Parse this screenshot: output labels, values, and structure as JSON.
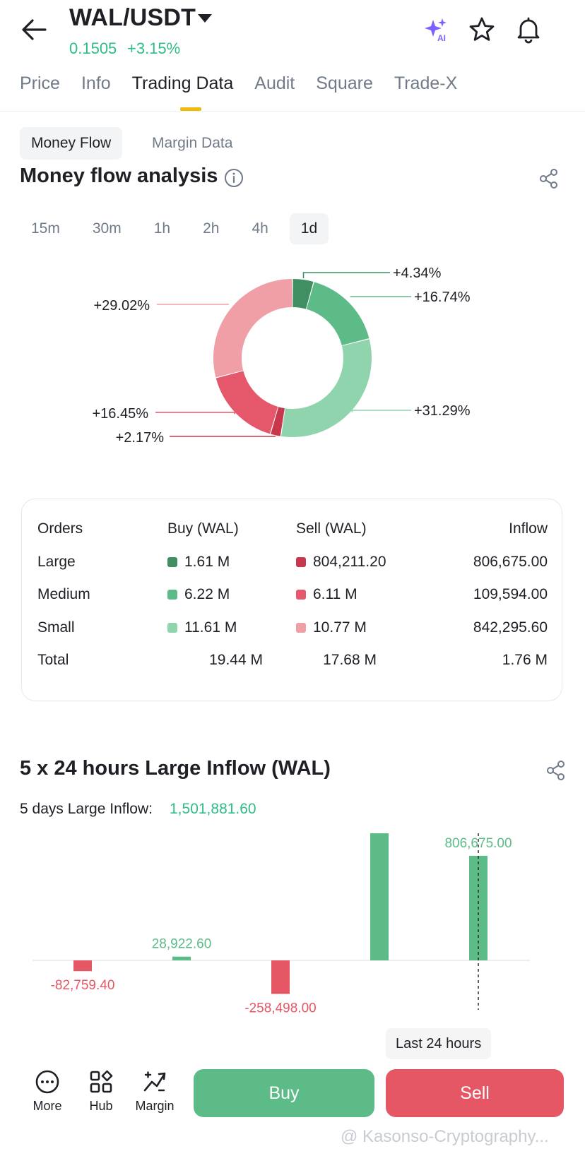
{
  "header": {
    "pair": "WAL/USDT",
    "price": "0.1505",
    "change": "+3.15%",
    "icons": [
      "back-arrow-icon",
      "ai-sparkle-icon",
      "star-icon",
      "bell-icon"
    ]
  },
  "tabs": [
    {
      "label": "Price"
    },
    {
      "label": "Info"
    },
    {
      "label": "Trading Data",
      "active": true
    },
    {
      "label": "Audit"
    },
    {
      "label": "Square"
    },
    {
      "label": "Trade-X"
    }
  ],
  "subtabs": {
    "money_flow": "Money Flow",
    "margin_data": "Margin Data"
  },
  "money_flow": {
    "title": "Money flow analysis",
    "intervals": [
      "15m",
      "30m",
      "1h",
      "2h",
      "4h",
      "1d"
    ],
    "active_interval": "1d"
  },
  "chart_data": [
    {
      "type": "pie",
      "variant": "donut",
      "slices": [
        {
          "label": "+4.34%",
          "value": 4.34,
          "color": "#3f8f63"
        },
        {
          "label": "+16.74%",
          "value": 16.74,
          "color": "#5cbb87"
        },
        {
          "label": "+31.29%",
          "value": 31.29,
          "color": "#90d4ad"
        },
        {
          "label": "+2.17%",
          "value": 2.17,
          "color": "#c8384c"
        },
        {
          "label": "+16.45%",
          "value": 16.45,
          "color": "#e5576a"
        },
        {
          "label": "+29.02%",
          "value": 29.02,
          "color": "#ef9fa5"
        }
      ]
    },
    {
      "type": "bar",
      "title": "5 x 24 hours Large Inflow (WAL)",
      "values": [
        -82759.4,
        28922.6,
        -258498.0,
        1007541.4,
        806675.0
      ],
      "labels": [
        "-82,759.40",
        "28,922.60",
        "-258,498.00",
        "1,007,541.40",
        "806,675.00"
      ],
      "positive_color": "#5cbb87",
      "negative_color": "#e65766",
      "highlight_last": true
    }
  ],
  "orders_table": {
    "headers": {
      "orders": "Orders",
      "buy": "Buy (WAL)",
      "sell": "Sell (WAL)",
      "inflow": "Inflow"
    },
    "rows": [
      {
        "order": "Large",
        "buy": "1.61 M",
        "sell": "804,211.20",
        "inflow": "806,675.00",
        "buy_color": "#3f8f63",
        "sell_color": "#c8384c"
      },
      {
        "order": "Medium",
        "buy": "6.22 M",
        "sell": "6.11 M",
        "inflow": "109,594.00",
        "buy_color": "#5cbb87",
        "sell_color": "#e5576a"
      },
      {
        "order": "Small",
        "buy": "11.61 M",
        "sell": "10.77 M",
        "inflow": "842,295.60",
        "buy_color": "#90d4ad",
        "sell_color": "#ef9fa5"
      }
    ],
    "total": {
      "order": "Total",
      "buy": "19.44 M",
      "sell": "17.68 M",
      "inflow": "1.76 M"
    }
  },
  "large_inflow": {
    "title": "5 x 24 hours Large Inflow (WAL)",
    "five_day_label": "5 days Large Inflow:",
    "five_day_value": "1,501,881.60",
    "tooltip": "Last 24 hours"
  },
  "bottom_bar": {
    "more": "More",
    "hub": "Hub",
    "margin": "Margin",
    "buy": "Buy",
    "sell": "Sell"
  },
  "watermark": "@ Kasonso-Cryptography..."
}
